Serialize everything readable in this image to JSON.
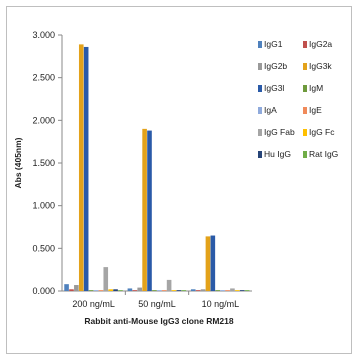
{
  "chart_data": {
    "type": "bar",
    "title": "",
    "xlabel": "Rabbit anti-Mouse IgG3 clone RM218",
    "ylabel": "Abs (405nm)",
    "ylim": [
      0,
      3.0
    ],
    "yticks": [
      "0.000",
      "0.500",
      "1.000",
      "1.500",
      "2.000",
      "2.500",
      "3.000"
    ],
    "grid": false,
    "legend_position": "right",
    "categories": [
      "200 ng/mL",
      "50 ng/mL",
      "10 ng/mL"
    ],
    "series": [
      {
        "name": "IgG1",
        "color": "#4f81bd",
        "values": [
          0.08,
          0.03,
          0.02
        ]
      },
      {
        "name": "IgG2a",
        "color": "#c0504d",
        "values": [
          0.02,
          0.01,
          0.01
        ]
      },
      {
        "name": "IgG2b",
        "color": "#9a9a9a",
        "values": [
          0.07,
          0.04,
          0.02
        ]
      },
      {
        "name": "IgG3k",
        "color": "#e3a21a",
        "values": [
          2.89,
          1.9,
          0.64
        ]
      },
      {
        "name": "IgG3l",
        "color": "#2a5aa8",
        "values": [
          2.86,
          1.88,
          0.65
        ]
      },
      {
        "name": "IgM",
        "color": "#6e9a3c",
        "values": [
          0.01,
          0.01,
          0.01
        ]
      },
      {
        "name": "IgA",
        "color": "#8faadc",
        "values": [
          0.01,
          0.01,
          0.01
        ]
      },
      {
        "name": "IgE",
        "color": "#f08a5a",
        "values": [
          0.01,
          0.01,
          0.01
        ]
      },
      {
        "name": "IgG Fab",
        "color": "#a5a5a5",
        "values": [
          0.28,
          0.13,
          0.03
        ]
      },
      {
        "name": "IgG Fc",
        "color": "#ffc000",
        "values": [
          0.02,
          0.01,
          0.01
        ]
      },
      {
        "name": "Hu IgG",
        "color": "#264478",
        "values": [
          0.02,
          0.01,
          0.01
        ]
      },
      {
        "name": "Rat IgG",
        "color": "#70ad47",
        "values": [
          0.01,
          0.01,
          0.01
        ]
      }
    ]
  }
}
